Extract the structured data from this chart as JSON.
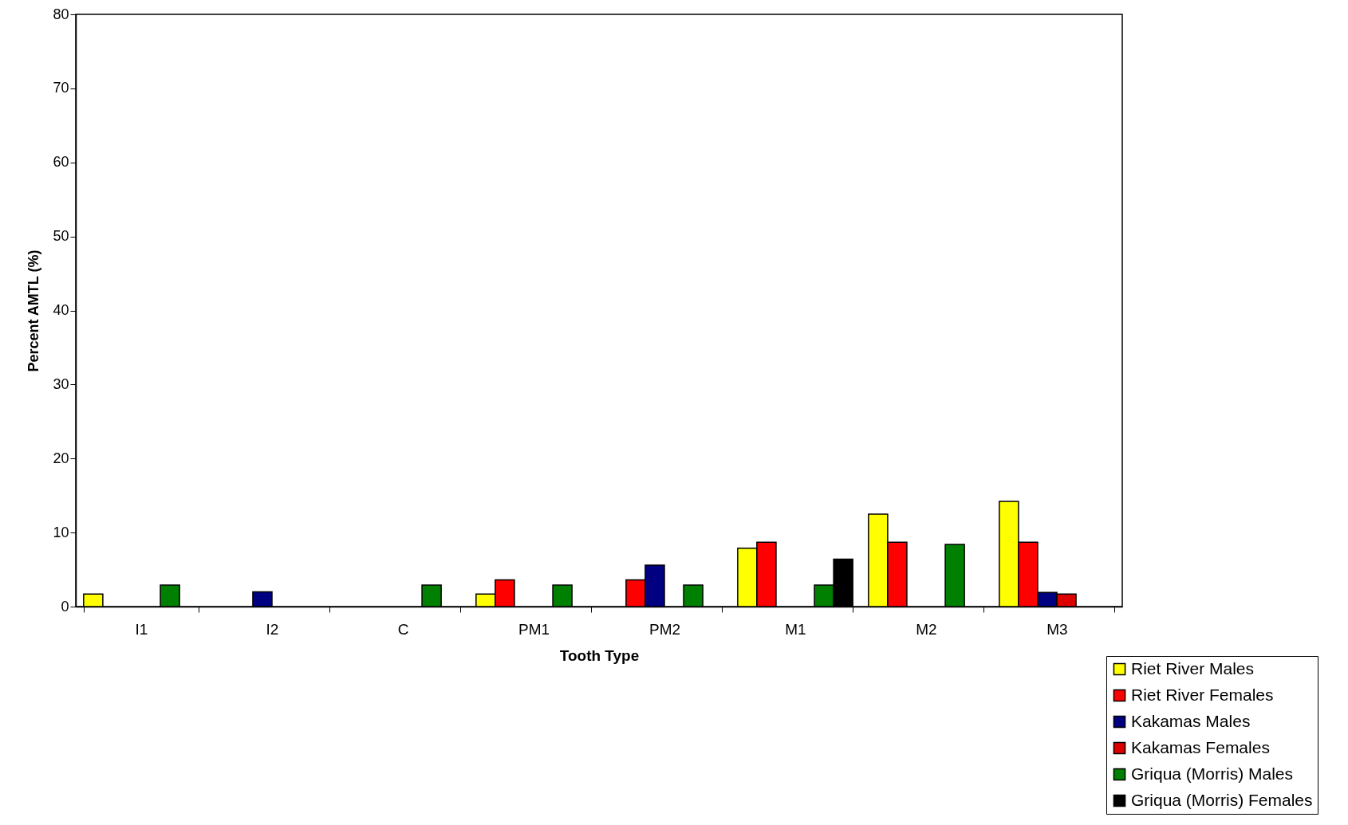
{
  "chart_data": {
    "type": "bar",
    "xlabel": "Tooth Type",
    "ylabel": "Percent AMTL (%)",
    "categories": [
      "I1",
      "I2",
      "C",
      "PM1",
      "PM2",
      "M1",
      "M2",
      "M3"
    ],
    "series": [
      {
        "name": "Riet River Males",
        "color": "#ffff00",
        "values": [
          1.7,
          null,
          null,
          1.7,
          null,
          7.9,
          12.5,
          14.2
        ]
      },
      {
        "name": "Riet River Females",
        "color": "#ff0000",
        "values": [
          null,
          null,
          null,
          3.6,
          3.6,
          8.7,
          8.7,
          8.7
        ]
      },
      {
        "name": "Kakamas Males",
        "color": "#000080",
        "values": [
          null,
          2.0,
          null,
          null,
          5.6,
          null,
          null,
          1.9
        ]
      },
      {
        "name": "Kakamas Females",
        "color": "#dd0000",
        "values": [
          null,
          null,
          null,
          null,
          null,
          null,
          null,
          1.7
        ]
      },
      {
        "name": "Griqua (Morris) Males",
        "color": "#008000",
        "values": [
          2.9,
          null,
          2.9,
          2.9,
          2.9,
          2.9,
          8.4,
          null
        ]
      },
      {
        "name": "Griqua (Morris) Females",
        "color": "#000000",
        "values": [
          null,
          null,
          null,
          null,
          null,
          6.4,
          null,
          null
        ]
      }
    ],
    "ylim": [
      0,
      80
    ],
    "yticks": [
      0,
      10,
      20,
      30,
      40,
      50,
      60,
      70,
      80
    ],
    "grid": false,
    "legend": "bottom right"
  }
}
